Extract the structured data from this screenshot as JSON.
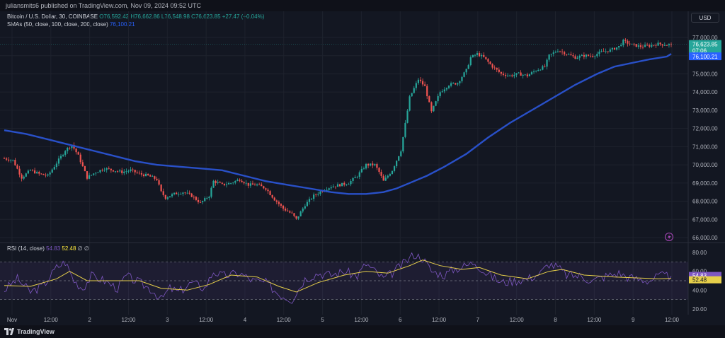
{
  "header": {
    "published": "juliansmits6 published on TradingView.com, Nov 09, 2024 09:52 UTC"
  },
  "legend": {
    "symbol": "Bitcoin / U.S. Dollar, 30, COINBASE",
    "ohlc": "O76,592.42 H76,662.86 L76,548.98 C76,623.85 +27.47 (+0.04%)",
    "sma_label": "SMAs (50, close, 100, close, 200, close)",
    "sma_value": "76,100.21"
  },
  "currency": "USD",
  "rsi_legend": {
    "label": "RSI (14, close)",
    "rsi": "54.83",
    "ma": "52.48",
    "extra": "∅ ∅"
  },
  "footer": {
    "brand": "TradingView"
  },
  "colors": {
    "background": "#131722",
    "up": "#26a69a",
    "down": "#ef5350",
    "sma": "#2950c8",
    "rsi": "#7e57c2",
    "rsi_ma": "#e6cf4a",
    "last_price_bg": "#26a69a",
    "sma_label_bg": "#2962ff"
  },
  "chart_data": [
    {
      "type": "candlestick",
      "y_ticks": [
        "77,000.00",
        "76,000.00",
        "75,000.00",
        "74,000.00",
        "73,000.00",
        "72,000.00",
        "71,000.00",
        "70,000.00",
        "69,000.00",
        "68,000.00",
        "67,000.00",
        "66,000.00"
      ],
      "ylim": [
        65500,
        77500
      ],
      "x_ticks": [
        "Nov",
        "12:00",
        "2",
        "12:00",
        "3",
        "12:00",
        "4",
        "12:00",
        "5",
        "12:00",
        "6",
        "12:00",
        "7",
        "12:00",
        "8",
        "12:00",
        "9",
        "12:00"
      ],
      "price_path": [
        [
          0,
          70350
        ],
        [
          4,
          70250
        ],
        [
          8,
          69300
        ],
        [
          12,
          69700
        ],
        [
          16,
          69500
        ],
        [
          20,
          69400
        ],
        [
          24,
          70100
        ],
        [
          28,
          70800
        ],
        [
          31,
          71100
        ],
        [
          34,
          70500
        ],
        [
          38,
          69300
        ],
        [
          42,
          69600
        ],
        [
          46,
          69800
        ],
        [
          50,
          69700
        ],
        [
          54,
          69600
        ],
        [
          58,
          69700
        ],
        [
          62,
          69500
        ],
        [
          66,
          69400
        ],
        [
          70,
          69200
        ],
        [
          72,
          68500
        ],
        [
          74,
          68200
        ],
        [
          78,
          68400
        ],
        [
          82,
          68500
        ],
        [
          86,
          68300
        ],
        [
          90,
          67900
        ],
        [
          94,
          68300
        ],
        [
          96,
          69100
        ],
        [
          100,
          68900
        ],
        [
          104,
          69000
        ],
        [
          108,
          69200
        ],
        [
          112,
          68900
        ],
        [
          116,
          68900
        ],
        [
          120,
          68700
        ],
        [
          124,
          68100
        ],
        [
          128,
          67600
        ],
        [
          132,
          67300
        ],
        [
          134,
          67000
        ],
        [
          138,
          67800
        ],
        [
          142,
          68300
        ],
        [
          146,
          68600
        ],
        [
          150,
          68800
        ],
        [
          154,
          68900
        ],
        [
          158,
          69000
        ],
        [
          162,
          69400
        ],
        [
          166,
          70000
        ],
        [
          170,
          70000
        ],
        [
          172,
          69600
        ],
        [
          174,
          69100
        ],
        [
          178,
          69700
        ],
        [
          182,
          70800
        ],
        [
          186,
          73700
        ],
        [
          190,
          74700
        ],
        [
          193,
          74300
        ],
        [
          196,
          72900
        ],
        [
          200,
          74000
        ],
        [
          204,
          74400
        ],
        [
          208,
          74500
        ],
        [
          212,
          75200
        ],
        [
          214,
          75900
        ],
        [
          217,
          76100
        ],
        [
          220,
          75900
        ],
        [
          224,
          75400
        ],
        [
          228,
          75000
        ],
        [
          232,
          74900
        ],
        [
          236,
          75000
        ],
        [
          240,
          74900
        ],
        [
          244,
          75200
        ],
        [
          248,
          75400
        ],
        [
          250,
          76000
        ],
        [
          254,
          76300
        ],
        [
          258,
          76100
        ],
        [
          262,
          75900
        ],
        [
          266,
          76000
        ],
        [
          270,
          76000
        ],
        [
          274,
          76200
        ],
        [
          278,
          76300
        ],
        [
          282,
          76500
        ],
        [
          284,
          76800
        ],
        [
          288,
          76600
        ],
        [
          292,
          76500
        ],
        [
          296,
          76550
        ],
        [
          300,
          76650
        ],
        [
          304,
          76600
        ],
        [
          306,
          76624
        ]
      ],
      "close": "76,623.85",
      "countdown": "07:06",
      "sma": [
        [
          0,
          71900
        ],
        [
          10,
          71700
        ],
        [
          20,
          71400
        ],
        [
          30,
          71100
        ],
        [
          40,
          70800
        ],
        [
          50,
          70500
        ],
        [
          60,
          70200
        ],
        [
          70,
          70000
        ],
        [
          80,
          69900
        ],
        [
          90,
          69800
        ],
        [
          100,
          69700
        ],
        [
          110,
          69400
        ],
        [
          120,
          69100
        ],
        [
          130,
          68900
        ],
        [
          140,
          68700
        ],
        [
          150,
          68500
        ],
        [
          158,
          68400
        ],
        [
          166,
          68400
        ],
        [
          174,
          68500
        ],
        [
          180,
          68700
        ],
        [
          186,
          69000
        ],
        [
          194,
          69400
        ],
        [
          202,
          69900
        ],
        [
          212,
          70600
        ],
        [
          222,
          71500
        ],
        [
          232,
          72300
        ],
        [
          242,
          73000
        ],
        [
          252,
          73700
        ],
        [
          262,
          74400
        ],
        [
          272,
          75000
        ],
        [
          280,
          75400
        ],
        [
          288,
          75600
        ],
        [
          296,
          75800
        ],
        [
          304,
          75950
        ],
        [
          306,
          76100
        ]
      ],
      "sma_value": "76,100.21"
    },
    {
      "type": "line",
      "title": "RSI (14, close)",
      "y_ticks": [
        "80.00",
        "60.00",
        "40.00",
        "20.00"
      ],
      "ylim": [
        15,
        85
      ],
      "upper_band": 70,
      "middle_band": 50,
      "lower_band": 30,
      "series": [
        {
          "name": "RSI",
          "values": [
            [
              0,
              40
            ],
            [
              6,
              52
            ],
            [
              12,
              38
            ],
            [
              18,
              45
            ],
            [
              24,
              64
            ],
            [
              28,
              70
            ],
            [
              32,
              50
            ],
            [
              36,
              42
            ],
            [
              40,
              55
            ],
            [
              46,
              50
            ],
            [
              52,
              42
            ],
            [
              56,
              55
            ],
            [
              62,
              48
            ],
            [
              68,
              40
            ],
            [
              72,
              30
            ],
            [
              76,
              42
            ],
            [
              80,
              38
            ],
            [
              86,
              48
            ],
            [
              92,
              42
            ],
            [
              96,
              60
            ],
            [
              100,
              55
            ],
            [
              108,
              58
            ],
            [
              114,
              50
            ],
            [
              120,
              48
            ],
            [
              126,
              36
            ],
            [
              132,
              30
            ],
            [
              138,
              52
            ],
            [
              144,
              58
            ],
            [
              150,
              56
            ],
            [
              156,
              60
            ],
            [
              162,
              55
            ],
            [
              166,
              68
            ],
            [
              170,
              60
            ],
            [
              174,
              52
            ],
            [
              178,
              58
            ],
            [
              184,
              70
            ],
            [
              188,
              78
            ],
            [
              192,
              74
            ],
            [
              196,
              60
            ],
            [
              202,
              56
            ],
            [
              206,
              62
            ],
            [
              212,
              66
            ],
            [
              216,
              70
            ],
            [
              220,
              60
            ],
            [
              224,
              54
            ],
            [
              228,
              48
            ],
            [
              234,
              50
            ],
            [
              240,
              52
            ],
            [
              246,
              58
            ],
            [
              250,
              68
            ],
            [
              254,
              64
            ],
            [
              258,
              56
            ],
            [
              264,
              55
            ],
            [
              270,
              50
            ],
            [
              276,
              55
            ],
            [
              282,
              58
            ],
            [
              286,
              54
            ],
            [
              290,
              52
            ],
            [
              296,
              50
            ],
            [
              300,
              55
            ],
            [
              306,
              54.83
            ]
          ]
        },
        {
          "name": "RSI-MA",
          "values": [
            [
              0,
              45
            ],
            [
              12,
              44
            ],
            [
              24,
              52
            ],
            [
              30,
              60
            ],
            [
              38,
              50
            ],
            [
              50,
              50
            ],
            [
              62,
              50
            ],
            [
              72,
              42
            ],
            [
              84,
              40
            ],
            [
              94,
              46
            ],
            [
              104,
              56
            ],
            [
              116,
              54
            ],
            [
              126,
              44
            ],
            [
              134,
              38
            ],
            [
              144,
              48
            ],
            [
              156,
              56
            ],
            [
              166,
              60
            ],
            [
              176,
              58
            ],
            [
              186,
              66
            ],
            [
              192,
              72
            ],
            [
              200,
              66
            ],
            [
              210,
              62
            ],
            [
              218,
              64
            ],
            [
              228,
              56
            ],
            [
              240,
              52
            ],
            [
              250,
              60
            ],
            [
              256,
              62
            ],
            [
              266,
              56
            ],
            [
              280,
              54
            ],
            [
              290,
              53
            ],
            [
              300,
              52
            ],
            [
              306,
              52.48
            ]
          ]
        }
      ],
      "rsi_value": "54.83",
      "ma_value": "52.48"
    }
  ]
}
